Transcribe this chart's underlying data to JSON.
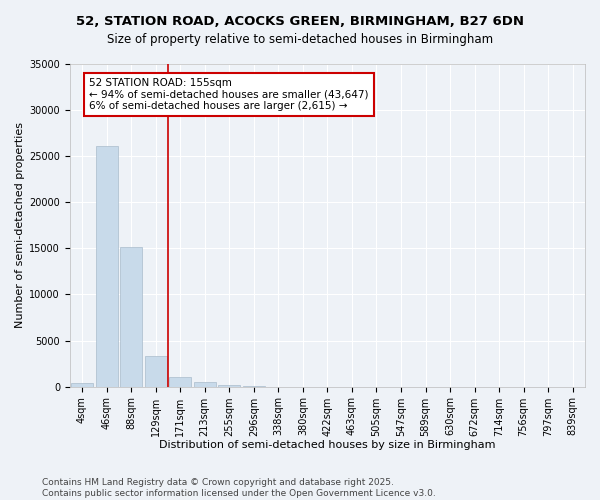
{
  "title_line1": "52, STATION ROAD, ACOCKS GREEN, BIRMINGHAM, B27 6DN",
  "title_line2": "Size of property relative to semi-detached houses in Birmingham",
  "xlabel": "Distribution of semi-detached houses by size in Birmingham",
  "ylabel": "Number of semi-detached properties",
  "categories": [
    "4sqm",
    "46sqm",
    "88sqm",
    "129sqm",
    "171sqm",
    "213sqm",
    "255sqm",
    "296sqm",
    "338sqm",
    "380sqm",
    "422sqm",
    "463sqm",
    "505sqm",
    "547sqm",
    "589sqm",
    "630sqm",
    "672sqm",
    "714sqm",
    "756sqm",
    "797sqm",
    "839sqm"
  ],
  "values": [
    400,
    26100,
    15100,
    3350,
    1050,
    450,
    150,
    50,
    0,
    0,
    0,
    0,
    0,
    0,
    0,
    0,
    0,
    0,
    0,
    0,
    0
  ],
  "bar_color": "#c8daea",
  "bar_edge_color": "#aabccc",
  "vline_x_index": 3.5,
  "vline_color": "#cc0000",
  "annotation_text": "52 STATION ROAD: 155sqm\n← 94% of semi-detached houses are smaller (43,647)\n6% of semi-detached houses are larger (2,615) →",
  "annotation_box_color": "#ffffff",
  "annotation_box_edge_color": "#cc0000",
  "ylim": [
    0,
    35000
  ],
  "yticks": [
    0,
    5000,
    10000,
    15000,
    20000,
    25000,
    30000,
    35000
  ],
  "ytick_labels": [
    "0",
    "5000",
    "10000",
    "15000",
    "20000",
    "25000",
    "30000",
    "35000"
  ],
  "background_color": "#eef2f7",
  "plot_bg_color": "#eef2f7",
  "grid_color": "#ffffff",
  "footer_text": "Contains HM Land Registry data © Crown copyright and database right 2025.\nContains public sector information licensed under the Open Government Licence v3.0.",
  "title_fontsize": 9.5,
  "subtitle_fontsize": 8.5,
  "axis_label_fontsize": 8,
  "tick_fontsize": 7,
  "annotation_fontsize": 7.5,
  "footer_fontsize": 6.5
}
